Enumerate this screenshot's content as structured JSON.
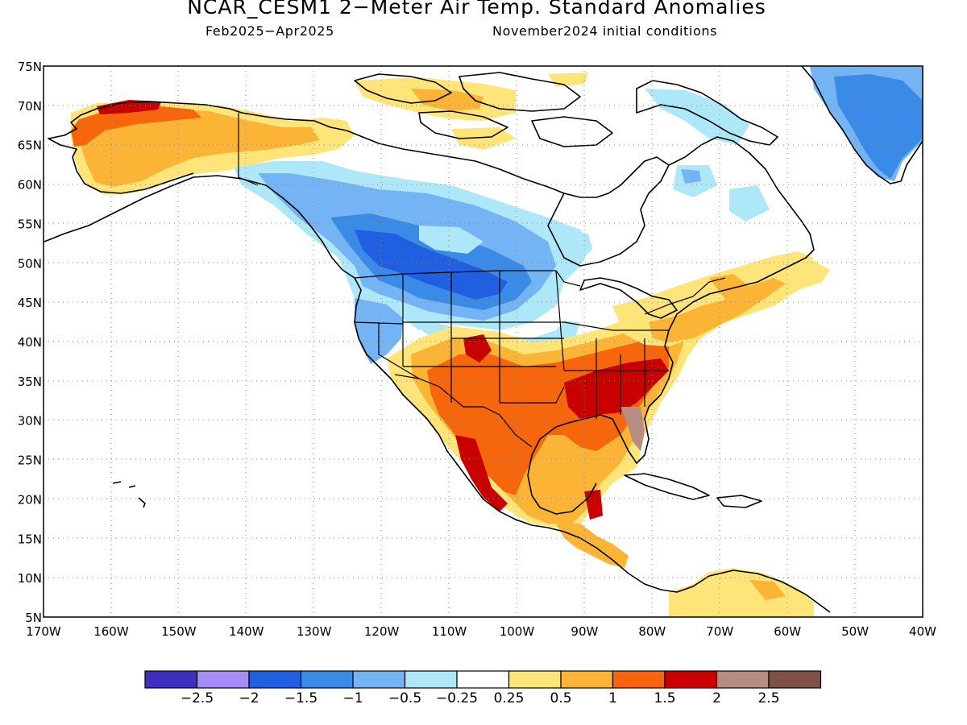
{
  "title": "NCAR_CESM1 2−Meter Air Temp. Standard Anomalies",
  "subtitle_left": "Feb2025−Apr2025",
  "subtitle_right": "November2024 initial conditions",
  "axes": {
    "lat_labels": [
      "75N",
      "70N",
      "65N",
      "60N",
      "55N",
      "50N",
      "45N",
      "40N",
      "35N",
      "30N",
      "25N",
      "20N",
      "15N",
      "10N",
      "5N"
    ],
    "lon_labels": [
      "170W",
      "160W",
      "150W",
      "140W",
      "130W",
      "120W",
      "110W",
      "100W",
      "90W",
      "80W",
      "70W",
      "60W",
      "50W",
      "40W"
    ],
    "lat_range": [
      5,
      75
    ],
    "lon_range": [
      -170,
      -40
    ],
    "grid": "dotted"
  },
  "colorbar": {
    "colors": [
      "#3f2fbf",
      "#a58df5",
      "#2060e0",
      "#3a8ae8",
      "#74b4f4",
      "#aee8f8",
      "#ffffff",
      "#ffe47a",
      "#fcb436",
      "#f6660c",
      "#c80000",
      "#b88e82",
      "#7e5046"
    ],
    "labels": [
      "−2.5",
      "−2",
      "−1.5",
      "−1",
      "−0.5",
      "−0.25",
      "0.25",
      "0.5",
      "1",
      "1.5",
      "2",
      "2.5"
    ]
  },
  "map_regions": [
    {
      "region": "Alaska",
      "category": "0.5"
    },
    {
      "region": "Western Alaska coast",
      "category": "1"
    },
    {
      "region": "Northwest Alaska coast",
      "category": "1.5"
    },
    {
      "region": "Western Canada / Pacific Northwest",
      "category": "-1"
    },
    {
      "region": "Alberta / Saskatchewan / Montana",
      "category": "-1.5"
    },
    {
      "region": "Greenland",
      "category": "-1.5"
    },
    {
      "region": "Canadian Arctic Archipelago",
      "category": "0.5"
    },
    {
      "region": "Southern Plains / Mexico",
      "category": "1"
    },
    {
      "region": "Southwest US / Northern Mexico",
      "category": "1.5"
    },
    {
      "region": "Southeast US",
      "category": "2"
    },
    {
      "region": "Florida",
      "category": "2.5"
    },
    {
      "region": "Northeast US",
      "category": "0.5"
    },
    {
      "region": "Central America",
      "category": "1"
    },
    {
      "region": "Northern South America",
      "category": "0.5"
    }
  ]
}
